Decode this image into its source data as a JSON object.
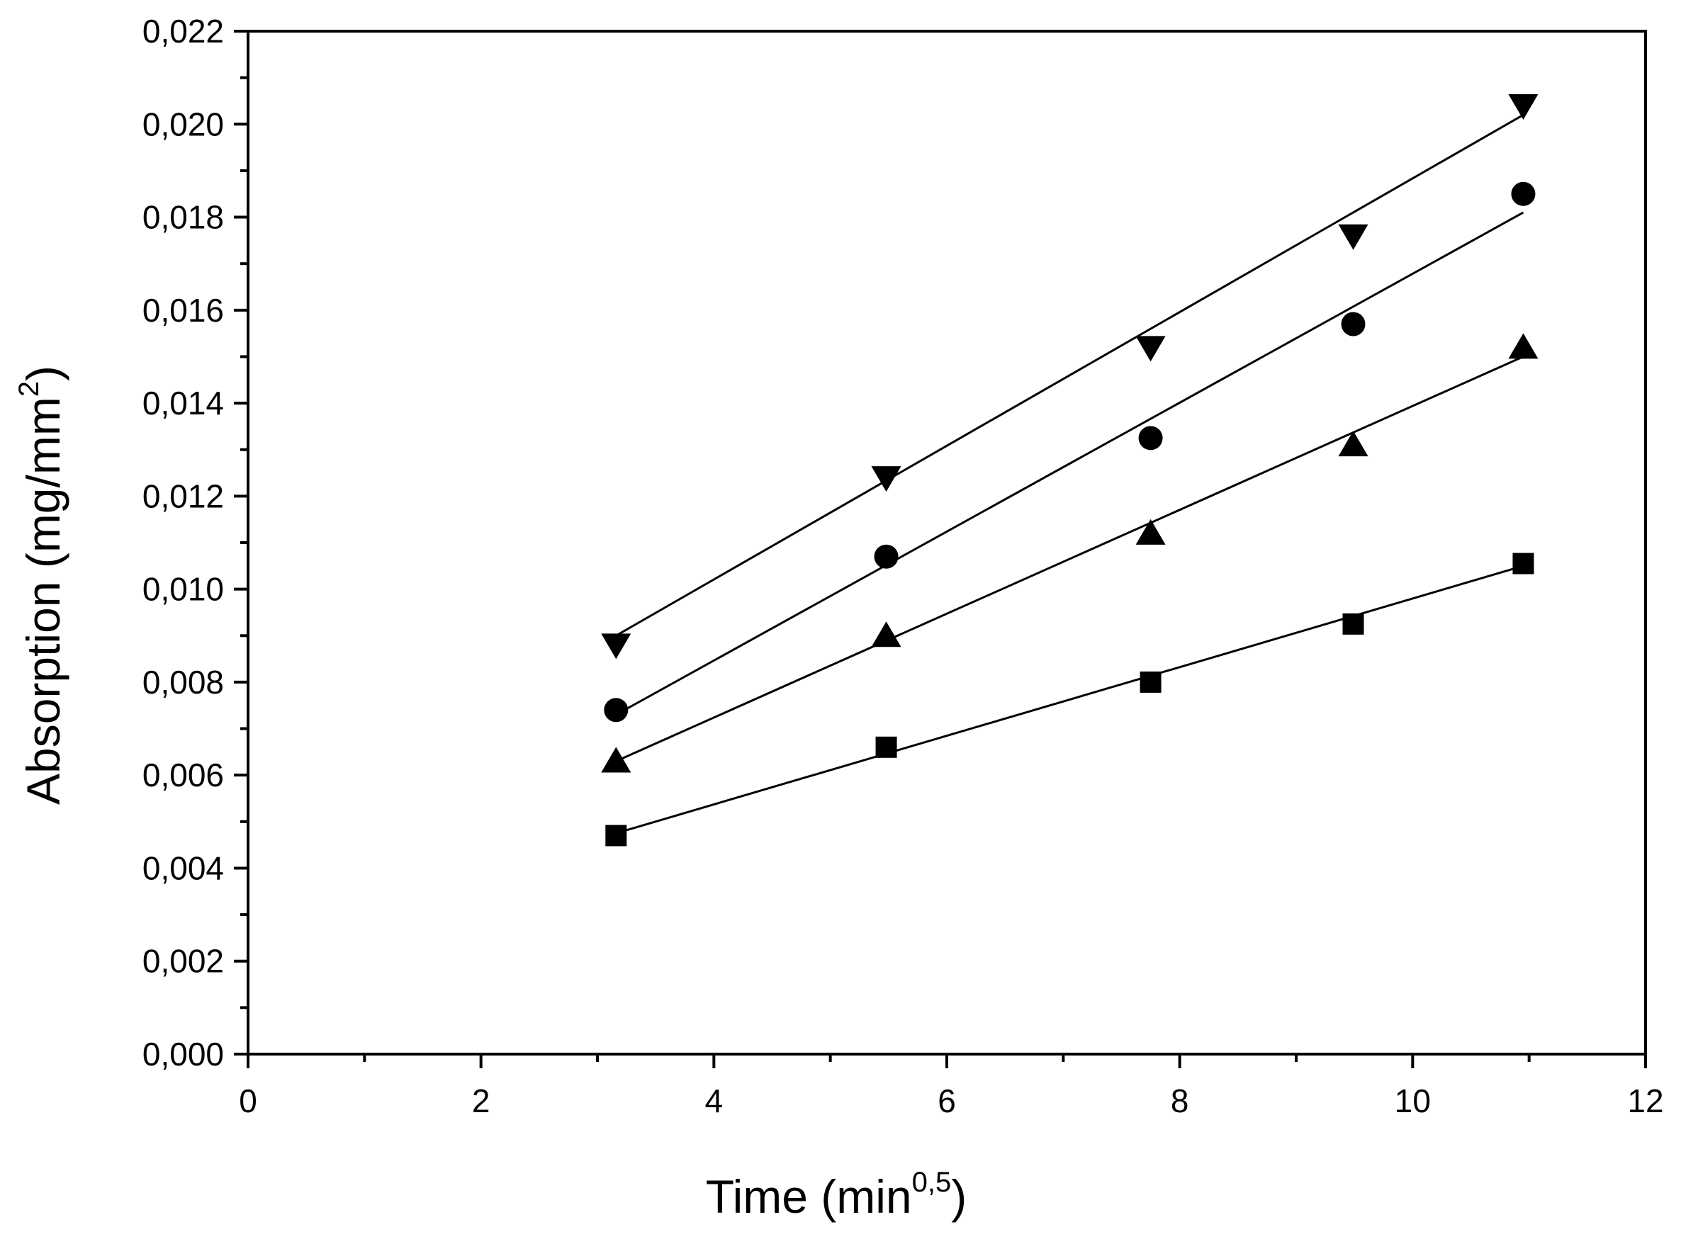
{
  "chart_data": {
    "type": "scatter",
    "title": "",
    "xlabel": "Time (min",
    "xlabel_sup": "0,5",
    "xlabel_close": ")",
    "ylabel": "Absorption (mg/mm",
    "ylabel_sup": "2",
    "ylabel_close": ")",
    "xlim": [
      0,
      12
    ],
    "ylim": [
      0,
      0.022
    ],
    "x_major_ticks": [
      0,
      2,
      4,
      6,
      8,
      10,
      12
    ],
    "x_tick_labels": [
      "0",
      "2",
      "4",
      "6",
      "8",
      "10",
      "12"
    ],
    "x_minor_ticks": [
      1,
      3,
      5,
      7,
      9,
      11
    ],
    "y_major_ticks": [
      0,
      0.002,
      0.004,
      0.006,
      0.008,
      0.01,
      0.012,
      0.014,
      0.016,
      0.018,
      0.02,
      0.022
    ],
    "y_tick_labels": [
      "0,000",
      "0,002",
      "0,004",
      "0,006",
      "0,008",
      "0,010",
      "0,012",
      "0,014",
      "0,016",
      "0,018",
      "0,020",
      "0,022"
    ],
    "y_minor_ticks": [
      0.001,
      0.003,
      0.005,
      0.007,
      0.009,
      0.011,
      0.013,
      0.015,
      0.017,
      0.019,
      0.021
    ],
    "grid": false,
    "series": [
      {
        "name": "square",
        "marker": "square",
        "x": [
          3.16,
          5.48,
          7.75,
          9.49,
          10.95
        ],
        "y": [
          0.0047,
          0.0066,
          0.008,
          0.00925,
          0.01055
        ],
        "fit": [
          [
            3.16,
            0.00475
          ],
          [
            10.95,
            0.0105
          ]
        ]
      },
      {
        "name": "triangle-up",
        "marker": "triangle-up",
        "x": [
          3.16,
          5.48,
          7.75,
          9.49,
          10.95
        ],
        "y": [
          0.0063,
          0.009,
          0.0112,
          0.0131,
          0.0152
        ],
        "fit": [
          [
            3.16,
            0.0063
          ],
          [
            10.95,
            0.015
          ]
        ]
      },
      {
        "name": "circle",
        "marker": "circle",
        "x": [
          3.16,
          5.48,
          7.75,
          9.49,
          10.95
        ],
        "y": [
          0.0074,
          0.0107,
          0.01325,
          0.0157,
          0.0185
        ],
        "fit": [
          [
            3.16,
            0.0073
          ],
          [
            10.95,
            0.0181
          ]
        ]
      },
      {
        "name": "triangle-down",
        "marker": "triangle-down",
        "x": [
          3.16,
          5.48,
          7.75,
          9.49,
          10.95
        ],
        "y": [
          0.0088,
          0.0124,
          0.0152,
          0.0176,
          0.0204
        ],
        "fit": [
          [
            3.16,
            0.009
          ],
          [
            10.95,
            0.0202
          ]
        ]
      }
    ]
  }
}
